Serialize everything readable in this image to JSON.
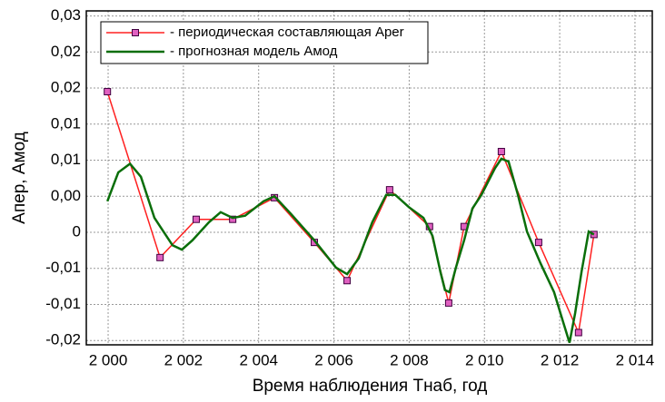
{
  "chart_data": {
    "type": "line",
    "x_label": "Время наблюдения Тнаб, год",
    "y_label": "Апер, Амод",
    "xlim": [
      1999.42,
      2014.46
    ],
    "ylim": [
      -0.0156,
      0.0307
    ],
    "xticks": [
      {
        "value": 2000,
        "label": "2 000"
      },
      {
        "value": 2002,
        "label": "2 002"
      },
      {
        "value": 2004,
        "label": "2 004"
      },
      {
        "value": 2006,
        "label": "2 006"
      },
      {
        "value": 2008,
        "label": "2 008"
      },
      {
        "value": 2010,
        "label": "2 010"
      },
      {
        "value": 2012,
        "label": "2 012"
      },
      {
        "value": 2014,
        "label": "2 014"
      }
    ],
    "yticks": [
      {
        "value": -0.015,
        "label": "-0,02"
      },
      {
        "value": -0.01,
        "label": "-0,01"
      },
      {
        "value": -0.005,
        "label": "-0,01"
      },
      {
        "value": 0,
        "label": "0"
      },
      {
        "value": 0.005,
        "label": "0,00"
      },
      {
        "value": 0.01,
        "label": "0,01"
      },
      {
        "value": 0.015,
        "label": "0,01"
      },
      {
        "value": 0.02,
        "label": "0,02"
      },
      {
        "value": 0.025,
        "label": "0,02"
      },
      {
        "value": 0.03,
        "label": "0,03"
      }
    ],
    "grid": true,
    "legend": "upper left",
    "series": [
      {
        "name": "- периодическая составляющая Aper",
        "color": "#ff2020",
        "marker": "square",
        "x": [
          1999.98,
          2001.38,
          2002.34,
          2003.31,
          2004.42,
          2005.48,
          2006.35,
          2007.48,
          2008.54,
          2009.05,
          2009.46,
          2010.45,
          2011.44,
          2012.5,
          2012.91
        ],
        "values": [
          0.0195,
          -0.0035,
          0.0018,
          0.0018,
          0.0048,
          -0.0014,
          -0.0067,
          0.0059,
          0.0008,
          -0.0098,
          0.0008,
          0.0112,
          -0.0014,
          -0.0139,
          -0.0003
        ]
      },
      {
        "name": "- прогнозная модель Амод",
        "color": "#0a6e0a",
        "x": [
          1999.98,
          2000.27,
          2000.58,
          2000.87,
          2001.23,
          2001.71,
          2001.96,
          2002.24,
          2002.68,
          2002.99,
          2003.31,
          2003.64,
          2004.13,
          2004.42,
          2004.85,
          2005.48,
          2006.06,
          2006.35,
          2006.66,
          2007.02,
          2007.39,
          2007.63,
          2007.99,
          2008.38,
          2008.62,
          2008.83,
          2008.95,
          2009.07,
          2009.24,
          2009.46,
          2009.68,
          2009.92,
          2010.28,
          2010.45,
          2010.64,
          2010.89,
          2011.13,
          2011.49,
          2011.85,
          2012.09,
          2012.26,
          2012.41,
          2012.58,
          2012.77,
          2012.91
        ],
        "values": [
          0.0043,
          0.0083,
          0.0095,
          0.0077,
          0.002,
          -0.0018,
          -0.0024,
          -0.0011,
          0.0014,
          0.0028,
          0.002,
          0.0023,
          0.0043,
          0.005,
          0.0026,
          -0.0011,
          -0.0049,
          -0.0058,
          -0.0036,
          0.0014,
          0.0052,
          0.0052,
          0.0035,
          0.002,
          -0.0005,
          -0.0055,
          -0.008,
          -0.0083,
          -0.0049,
          -0.0011,
          0.0033,
          0.0052,
          0.0089,
          0.0102,
          0.0098,
          0.0052,
          0.0001,
          -0.0043,
          -0.0083,
          -0.0124,
          -0.0153,
          -0.0112,
          -0.0055,
          0.0001,
          -0.0003
        ]
      }
    ]
  }
}
